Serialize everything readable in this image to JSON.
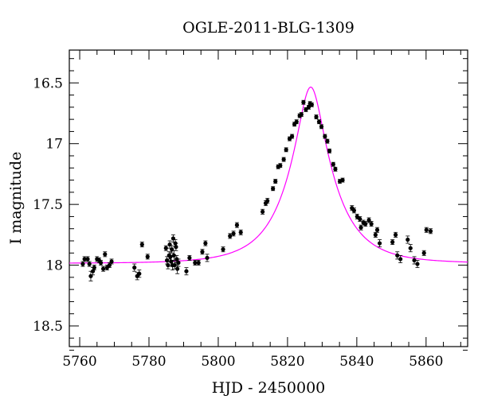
{
  "chart_data": {
    "type": "scatter",
    "title": "OGLE-2011-BLG-1309",
    "xlabel": "HJD - 2450000",
    "ylabel": "I magnitude",
    "xlim": [
      5757,
      5872
    ],
    "ylim": [
      18.67,
      16.23
    ],
    "y_inverted": true,
    "xticks": [
      5760,
      5780,
      5800,
      5820,
      5840,
      5860
    ],
    "yticks": [
      16.5,
      17,
      17.5,
      18,
      18.5
    ],
    "xtick_labels": [
      "5760",
      "5780",
      "5800",
      "5820",
      "5840",
      "5860"
    ],
    "ytick_labels": [
      "16.5",
      "17",
      "17.5",
      "18",
      "18.5"
    ],
    "grid": false,
    "colors": {
      "points": "#000000",
      "model": "#ff00ff"
    },
    "model": {
      "t0": 5826.7,
      "tE": 13.0,
      "u0": 0.27,
      "baseline_mag": 17.985,
      "blend_fraction": 1.0
    },
    "points": [
      [
        5760.9,
        17.99,
        0.02
      ],
      [
        5761.4,
        17.95,
        0.02
      ],
      [
        5762.3,
        17.95,
        0.02
      ],
      [
        5762.8,
        17.99,
        0.02
      ],
      [
        5763.2,
        18.09,
        0.04
      ],
      [
        5763.8,
        18.05,
        0.03
      ],
      [
        5764.2,
        18.02,
        0.02
      ],
      [
        5765.0,
        17.95,
        0.02
      ],
      [
        5765.6,
        17.96,
        0.02
      ],
      [
        5766.1,
        17.98,
        0.02
      ],
      [
        5766.8,
        18.03,
        0.02
      ],
      [
        5767.3,
        17.91,
        0.02
      ],
      [
        5767.9,
        18.02,
        0.02
      ],
      [
        5768.6,
        18.0,
        0.02
      ],
      [
        5769.2,
        17.97,
        0.02
      ],
      [
        5775.8,
        18.02,
        0.03
      ],
      [
        5776.6,
        18.09,
        0.03
      ],
      [
        5777.2,
        18.07,
        0.03
      ],
      [
        5778.0,
        17.83,
        0.02
      ],
      [
        5779.6,
        17.93,
        0.02
      ],
      [
        5784.9,
        17.86,
        0.02
      ],
      [
        5785.2,
        17.96,
        0.03
      ],
      [
        5785.5,
        18.0,
        0.03
      ],
      [
        5785.8,
        17.92,
        0.03
      ],
      [
        5786.0,
        17.83,
        0.03
      ],
      [
        5786.2,
        17.93,
        0.04
      ],
      [
        5786.4,
        17.97,
        0.04
      ],
      [
        5786.6,
        17.87,
        0.03
      ],
      [
        5786.8,
        18.0,
        0.04
      ],
      [
        5787.0,
        17.78,
        0.03
      ],
      [
        5787.2,
        17.92,
        0.04
      ],
      [
        5787.4,
        18.0,
        0.03
      ],
      [
        5787.6,
        17.82,
        0.03
      ],
      [
        5787.8,
        17.85,
        0.03
      ],
      [
        5788.0,
        17.95,
        0.03
      ],
      [
        5788.2,
        18.03,
        0.04
      ],
      [
        5788.5,
        17.98,
        0.03
      ],
      [
        5790.8,
        18.05,
        0.03
      ],
      [
        5791.7,
        17.94,
        0.02
      ],
      [
        5793.3,
        17.98,
        0.02
      ],
      [
        5794.3,
        17.98,
        0.02
      ],
      [
        5795.4,
        17.89,
        0.02
      ],
      [
        5796.3,
        17.82,
        0.02
      ],
      [
        5796.8,
        17.94,
        0.03
      ],
      [
        5801.4,
        17.87,
        0.02
      ],
      [
        5803.4,
        17.76,
        0.02
      ],
      [
        5804.4,
        17.74,
        0.02
      ],
      [
        5805.4,
        17.67,
        0.02
      ],
      [
        5806.5,
        17.73,
        0.02
      ],
      [
        5812.8,
        17.56,
        0.02
      ],
      [
        5813.7,
        17.49,
        0.02
      ],
      [
        5814.2,
        17.47,
        0.02
      ],
      [
        5815.8,
        17.37,
        0.01
      ],
      [
        5816.5,
        17.31,
        0.01
      ],
      [
        5817.3,
        17.19,
        0.01
      ],
      [
        5817.9,
        17.18,
        0.01
      ],
      [
        5818.9,
        17.13,
        0.01
      ],
      [
        5819.6,
        17.05,
        0.01
      ],
      [
        5820.6,
        16.96,
        0.01
      ],
      [
        5821.3,
        16.94,
        0.01
      ],
      [
        5822.0,
        16.84,
        0.01
      ],
      [
        5822.6,
        16.82,
        0.01
      ],
      [
        5823.5,
        16.77,
        0.01
      ],
      [
        5824.0,
        16.76,
        0.01
      ],
      [
        5824.6,
        16.66,
        0.01
      ],
      [
        5825.3,
        16.72,
        0.01
      ],
      [
        5826.1,
        16.7,
        0.01
      ],
      [
        5826.5,
        16.67,
        0.01
      ],
      [
        5827.0,
        16.68,
        0.01
      ],
      [
        5828.3,
        16.78,
        0.01
      ],
      [
        5829.1,
        16.82,
        0.01
      ],
      [
        5829.8,
        16.86,
        0.01
      ],
      [
        5830.8,
        16.94,
        0.01
      ],
      [
        5831.5,
        16.98,
        0.01
      ],
      [
        5832.1,
        17.06,
        0.01
      ],
      [
        5833.2,
        17.17,
        0.01
      ],
      [
        5833.8,
        17.21,
        0.01
      ],
      [
        5835.1,
        17.31,
        0.01
      ],
      [
        5835.9,
        17.3,
        0.01
      ],
      [
        5838.6,
        17.53,
        0.02
      ],
      [
        5839.2,
        17.55,
        0.02
      ],
      [
        5840.1,
        17.6,
        0.02
      ],
      [
        5840.9,
        17.62,
        0.02
      ],
      [
        5841.2,
        17.69,
        0.02
      ],
      [
        5841.9,
        17.65,
        0.02
      ],
      [
        5842.5,
        17.66,
        0.02
      ],
      [
        5843.5,
        17.63,
        0.02
      ],
      [
        5844.2,
        17.66,
        0.02
      ],
      [
        5845.4,
        17.75,
        0.02
      ],
      [
        5845.9,
        17.71,
        0.02
      ],
      [
        5846.6,
        17.82,
        0.03
      ],
      [
        5850.3,
        17.81,
        0.02
      ],
      [
        5851.2,
        17.75,
        0.02
      ],
      [
        5851.7,
        17.92,
        0.03
      ],
      [
        5852.6,
        17.95,
        0.03
      ],
      [
        5854.7,
        17.79,
        0.03
      ],
      [
        5855.5,
        17.86,
        0.03
      ],
      [
        5856.6,
        17.96,
        0.03
      ],
      [
        5857.5,
        17.99,
        0.03
      ],
      [
        5859.4,
        17.9,
        0.02
      ],
      [
        5860.1,
        17.71,
        0.02
      ],
      [
        5861.3,
        17.72,
        0.02
      ]
    ]
  }
}
